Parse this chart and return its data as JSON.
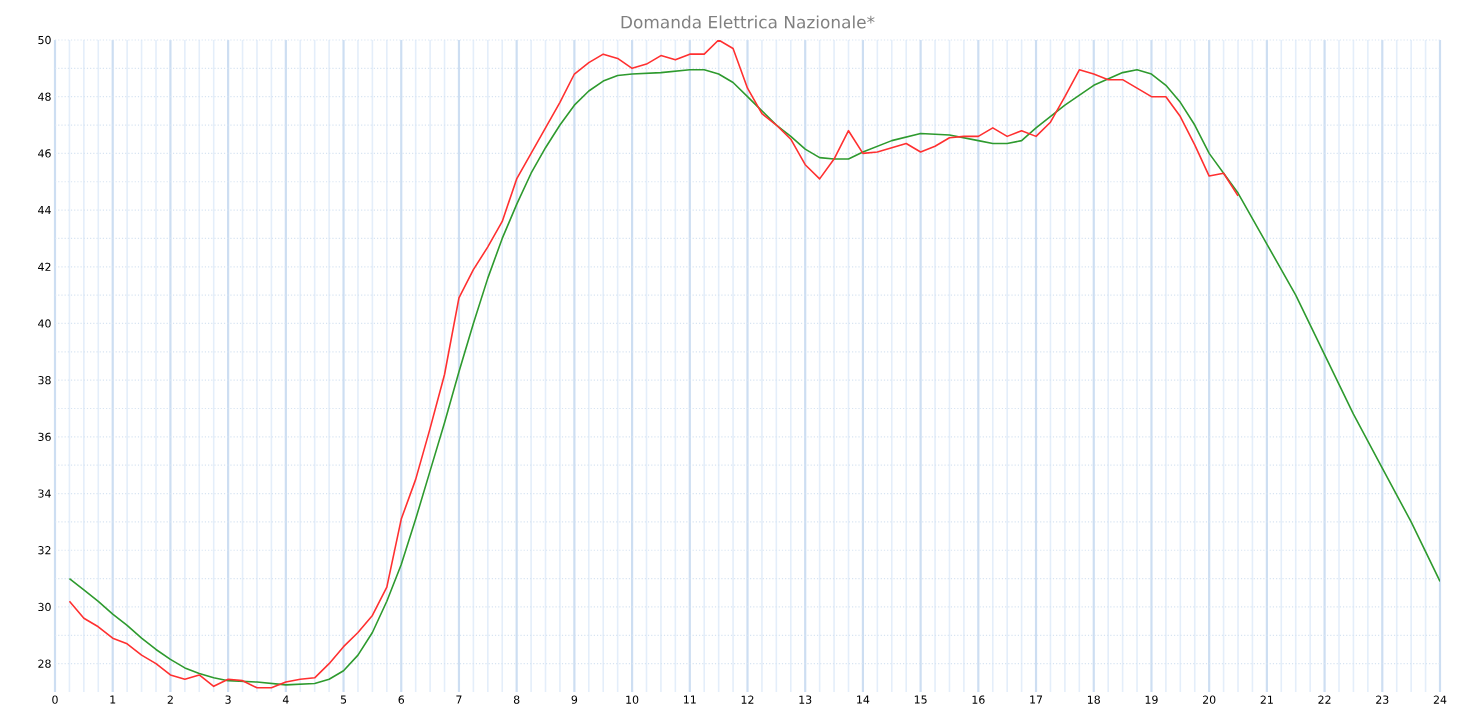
{
  "chart_data": {
    "type": "line",
    "title": "Domanda Elettrica Nazionale*",
    "xlim": [
      0,
      24
    ],
    "xticks": [
      0,
      1,
      2,
      3,
      4,
      5,
      6,
      7,
      8,
      9,
      10,
      11,
      12,
      13,
      14,
      15,
      16,
      17,
      18,
      19,
      20,
      21,
      22,
      23,
      24
    ],
    "ylim": [
      27,
      50
    ],
    "yticks": [
      28,
      30,
      32,
      34,
      36,
      38,
      40,
      42,
      44,
      46,
      48,
      50
    ],
    "grid": true,
    "marker": "none",
    "line_style": "solid",
    "series": [
      {
        "color": "#2e9a2e",
        "x": [
          0.25,
          0.5,
          0.75,
          1,
          1.25,
          1.5,
          1.75,
          2,
          2.25,
          2.5,
          2.75,
          3,
          3.5,
          4,
          4.5,
          4.75,
          5,
          5.25,
          5.5,
          5.75,
          6,
          6.25,
          6.5,
          6.75,
          7,
          7.25,
          7.5,
          7.75,
          8,
          8.25,
          8.5,
          8.75,
          9,
          9.25,
          9.5,
          9.75,
          10,
          10.5,
          11,
          11.25,
          11.5,
          11.75,
          12,
          12.25,
          12.5,
          12.75,
          13,
          13.25,
          13.5,
          13.75,
          14,
          14.5,
          15,
          15.5,
          16,
          16.25,
          16.5,
          16.75,
          17,
          17.5,
          18,
          18.5,
          18.75,
          19,
          19.25,
          19.5,
          19.75,
          20,
          20.5,
          21,
          21.5,
          22,
          22.5,
          23,
          23.5,
          24
        ],
        "values": [
          31.0,
          30.6,
          30.2,
          29.75,
          29.35,
          28.9,
          28.5,
          28.15,
          27.85,
          27.65,
          27.5,
          27.4,
          27.35,
          27.25,
          27.3,
          27.45,
          27.75,
          28.3,
          29.1,
          30.2,
          31.5,
          33.1,
          34.8,
          36.5,
          38.3,
          40.0,
          41.6,
          43.0,
          44.2,
          45.3,
          46.2,
          47.0,
          47.7,
          48.2,
          48.55,
          48.75,
          48.8,
          48.85,
          48.95,
          48.95,
          48.8,
          48.5,
          48.0,
          47.5,
          47.0,
          46.6,
          46.15,
          45.85,
          45.8,
          45.8,
          46.05,
          46.45,
          46.7,
          46.65,
          46.45,
          46.35,
          46.35,
          46.45,
          46.9,
          47.7,
          48.4,
          48.85,
          48.95,
          48.8,
          48.4,
          47.8,
          47.0,
          46.0,
          44.6,
          42.8,
          41.0,
          38.9,
          36.8,
          34.9,
          33.0,
          30.9
        ]
      },
      {
        "color": "#ff3030",
        "x": [
          0.25,
          0.5,
          0.75,
          1,
          1.25,
          1.5,
          1.75,
          2,
          2.25,
          2.5,
          2.75,
          3,
          3.25,
          3.5,
          3.75,
          4,
          4.25,
          4.5,
          4.75,
          5,
          5.25,
          5.5,
          5.75,
          6,
          6.25,
          6.5,
          6.75,
          7,
          7.25,
          7.5,
          7.75,
          8,
          8.25,
          8.5,
          8.75,
          9,
          9.25,
          9.5,
          9.75,
          10,
          10.25,
          10.5,
          10.75,
          11,
          11.25,
          11.5,
          11.75,
          12,
          12.25,
          12.5,
          12.75,
          13,
          13.25,
          13.5,
          13.75,
          14,
          14.25,
          14.5,
          14.75,
          15,
          15.25,
          15.5,
          15.75,
          16,
          16.25,
          16.5,
          16.75,
          17,
          17.25,
          17.5,
          17.75,
          18,
          18.25,
          18.5,
          18.75,
          19,
          19.25,
          19.5,
          19.75,
          20,
          20.25,
          20.5
        ],
        "values": [
          30.2,
          29.6,
          29.3,
          28.9,
          28.7,
          28.3,
          28.0,
          27.6,
          27.45,
          27.6,
          27.2,
          27.45,
          27.4,
          27.15,
          27.15,
          27.35,
          27.45,
          27.5,
          28.0,
          28.6,
          29.1,
          29.7,
          30.7,
          33.1,
          34.5,
          36.3,
          38.2,
          40.9,
          41.9,
          42.7,
          43.6,
          45.1,
          46.0,
          46.9,
          47.8,
          48.8,
          49.2,
          49.5,
          49.35,
          49.0,
          49.15,
          49.45,
          49.3,
          49.5,
          49.5,
          50.0,
          49.7,
          48.3,
          47.4,
          47.0,
          46.5,
          45.6,
          45.1,
          45.8,
          46.8,
          46.0,
          46.05,
          46.2,
          46.35,
          46.05,
          46.25,
          46.55,
          46.6,
          46.6,
          46.9,
          46.6,
          46.8,
          46.6,
          47.1,
          48.0,
          48.95,
          48.8,
          48.6,
          48.6,
          48.3,
          48.0,
          48.0,
          47.3,
          46.3,
          45.2,
          45.3,
          44.5
        ]
      }
    ]
  }
}
